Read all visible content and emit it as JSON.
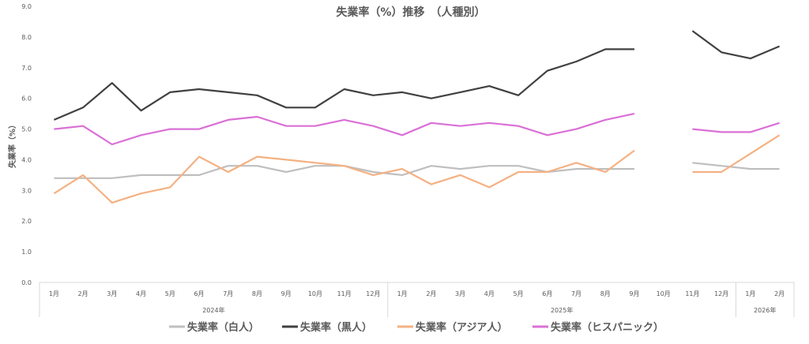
{
  "chart_data": {
    "type": "line",
    "title": "失業率（%）推移　（人種別）",
    "xlabel": "",
    "ylabel": "失業率（%）",
    "ylim": [
      0,
      9
    ],
    "yticks": [
      "0.0",
      "1.0",
      "2.0",
      "3.0",
      "4.0",
      "5.0",
      "6.0",
      "7.0",
      "8.0",
      "9.0"
    ],
    "categories": [
      "1月",
      "2月",
      "3月",
      "4月",
      "5月",
      "6月",
      "7月",
      "8月",
      "9月",
      "10月",
      "11月",
      "12月",
      "1月",
      "2月",
      "3月",
      "4月",
      "5月",
      "6月",
      "7月",
      "8月",
      "9月",
      "10月",
      "11月",
      "12月",
      "1月",
      "2月"
    ],
    "groups": [
      {
        "label": "2024年",
        "count": 12
      },
      {
        "label": "2025年",
        "count": 12
      },
      {
        "label": "2026年",
        "count": 2
      }
    ],
    "legend_position": "bottom",
    "grid": false,
    "series": [
      {
        "name": "失業率（白人）",
        "color": "#BFBFBF",
        "values": [
          3.4,
          3.4,
          3.4,
          3.5,
          3.5,
          3.5,
          3.8,
          3.8,
          3.6,
          3.8,
          3.8,
          3.6,
          3.5,
          3.8,
          3.7,
          3.8,
          3.8,
          3.6,
          3.7,
          3.7,
          3.7,
          null,
          3.9,
          3.8,
          3.7,
          3.7
        ]
      },
      {
        "name": "失業率（黒人）",
        "color": "#404040",
        "values": [
          5.3,
          5.7,
          6.5,
          5.6,
          6.2,
          6.3,
          6.2,
          6.1,
          5.7,
          5.7,
          6.3,
          6.1,
          6.2,
          6.0,
          6.2,
          6.4,
          6.1,
          6.9,
          7.2,
          7.6,
          7.6,
          null,
          8.2,
          7.5,
          7.3,
          7.7
        ]
      },
      {
        "name": "失業率（アジア人）",
        "color": "#F4B183",
        "values": [
          2.9,
          3.5,
          2.6,
          2.9,
          3.1,
          4.1,
          3.6,
          4.1,
          4.0,
          3.9,
          3.8,
          3.5,
          3.7,
          3.2,
          3.5,
          3.1,
          3.6,
          3.6,
          3.9,
          3.6,
          4.3,
          null,
          3.6,
          3.6,
          4.2,
          4.8
        ]
      },
      {
        "name": "失業率（ヒスパニック）",
        "color": "#DA70D6",
        "values": [
          5.0,
          5.1,
          4.5,
          4.8,
          5.0,
          5.0,
          5.3,
          5.4,
          5.1,
          5.1,
          5.3,
          5.1,
          4.8,
          5.2,
          5.1,
          5.2,
          5.1,
          4.8,
          5.0,
          5.3,
          5.5,
          null,
          5.0,
          4.9,
          4.9,
          5.2
        ]
      }
    ]
  }
}
